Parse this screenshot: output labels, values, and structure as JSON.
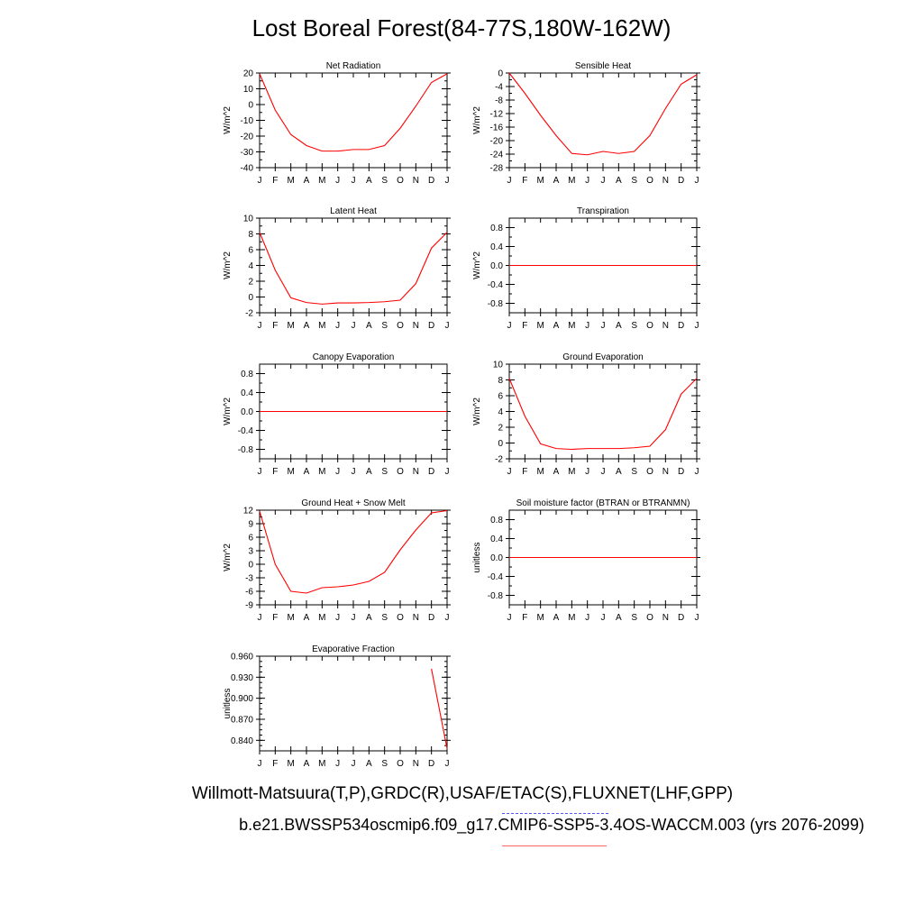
{
  "page": {
    "title": "Lost Boreal Forest(84-77S,180W-162W)",
    "footer_obs": "Willmott-Matsuura(T,P),GRDC(R),USAF/ETAC(S),FLUXNET(LHF,GPP)",
    "footer_case": "b.e21.BWSSP534oscmip6.f09_g17.CMIP6-SSP5-3.4OS-WACCM.003 (yrs 2076-2099)"
  },
  "colors": {
    "series": "#ff0000",
    "obs_legend": "#5555ff",
    "model_legend": "#ff6666"
  },
  "chart_data": [
    {
      "type": "line",
      "title": "Net Radiation",
      "ylabel": "W/m^2",
      "x": [
        "J",
        "F",
        "M",
        "A",
        "M",
        "J",
        "J",
        "A",
        "S",
        "O",
        "N",
        "D",
        "J"
      ],
      "ylim": [
        -40,
        20
      ],
      "yticks": [
        -40,
        -30,
        -20,
        -10,
        0,
        10,
        20
      ],
      "yminor": 5,
      "decimals": 0,
      "values": [
        19.5,
        -3.5,
        -19,
        -26,
        -29.5,
        -29.5,
        -28.5,
        -28.5,
        -26,
        -15,
        -1,
        14,
        19.5
      ]
    },
    {
      "type": "line",
      "title": "Sensible Heat",
      "ylabel": "W/m^2",
      "x": [
        "J",
        "F",
        "M",
        "A",
        "M",
        "J",
        "J",
        "A",
        "S",
        "O",
        "N",
        "D",
        "J"
      ],
      "ylim": [
        -28,
        0
      ],
      "yticks": [
        -28,
        -24,
        -20,
        -16,
        -12,
        -8,
        -4,
        0
      ],
      "yminor": 2,
      "decimals": 0,
      "values": [
        0,
        -6,
        -12.5,
        -18.5,
        -23.8,
        -24.2,
        -23.2,
        -23.8,
        -23.2,
        -18.5,
        -10.5,
        -3.3,
        -0.5
      ]
    },
    {
      "type": "line",
      "title": "Latent Heat",
      "ylabel": "W/m^2",
      "x": [
        "J",
        "F",
        "M",
        "A",
        "M",
        "J",
        "J",
        "A",
        "S",
        "O",
        "N",
        "D",
        "J"
      ],
      "ylim": [
        -2,
        10
      ],
      "yticks": [
        -2,
        0,
        2,
        4,
        6,
        8,
        10
      ],
      "yminor": 1,
      "decimals": 0,
      "values": [
        8.2,
        3.4,
        -0.1,
        -0.7,
        -0.9,
        -0.75,
        -0.75,
        -0.7,
        -0.6,
        -0.4,
        1.7,
        6.2,
        8.2
      ]
    },
    {
      "type": "line",
      "title": "Transpiration",
      "ylabel": "W/m^2",
      "x": [
        "J",
        "F",
        "M",
        "A",
        "M",
        "J",
        "J",
        "A",
        "S",
        "O",
        "N",
        "D",
        "J"
      ],
      "ylim": [
        -1,
        1
      ],
      "yticks": [
        -0.8,
        -0.4,
        0.0,
        0.4,
        0.8
      ],
      "yminor": 0.2,
      "decimals": 1,
      "values": [
        0,
        0,
        0,
        0,
        0,
        0,
        0,
        0,
        0,
        0,
        0,
        0,
        0
      ]
    },
    {
      "type": "line",
      "title": "Canopy Evaporation",
      "ylabel": "W/m^2",
      "x": [
        "J",
        "F",
        "M",
        "A",
        "M",
        "J",
        "J",
        "A",
        "S",
        "O",
        "N",
        "D",
        "J"
      ],
      "ylim": [
        -1,
        1
      ],
      "yticks": [
        -0.8,
        -0.4,
        0.0,
        0.4,
        0.8
      ],
      "yminor": 0.2,
      "decimals": 1,
      "values": [
        0,
        0,
        0,
        0,
        0,
        0,
        0,
        0,
        0,
        0,
        0,
        0,
        0
      ]
    },
    {
      "type": "line",
      "title": "Ground Evaporation",
      "ylabel": "W/m^2",
      "x": [
        "J",
        "F",
        "M",
        "A",
        "M",
        "J",
        "J",
        "A",
        "S",
        "O",
        "N",
        "D",
        "J"
      ],
      "ylim": [
        -2,
        10
      ],
      "yticks": [
        -2,
        0,
        2,
        4,
        6,
        8,
        10
      ],
      "yminor": 1,
      "decimals": 0,
      "values": [
        8.2,
        3.4,
        -0.1,
        -0.7,
        -0.8,
        -0.7,
        -0.7,
        -0.7,
        -0.6,
        -0.4,
        1.7,
        6.2,
        8.2
      ]
    },
    {
      "type": "line",
      "title": "Ground Heat + Snow Melt",
      "ylabel": "W/m^2",
      "x": [
        "J",
        "F",
        "M",
        "A",
        "M",
        "J",
        "J",
        "A",
        "S",
        "O",
        "N",
        "D",
        "J"
      ],
      "ylim": [
        -9,
        12
      ],
      "yticks": [
        -9,
        -6,
        -3,
        0,
        3,
        6,
        9,
        12
      ],
      "yminor": 1.5,
      "decimals": 0,
      "values": [
        11.8,
        0,
        -6,
        -6.4,
        -5.2,
        -5,
        -4.6,
        -3.8,
        -1.8,
        3.2,
        7.6,
        11.4,
        11.9
      ]
    },
    {
      "type": "line",
      "title": "Soil moisture factor (BTRAN or BTRANMN)",
      "ylabel": "unitless",
      "x": [
        "J",
        "F",
        "M",
        "A",
        "M",
        "J",
        "J",
        "A",
        "S",
        "O",
        "N",
        "D",
        "J"
      ],
      "ylim": [
        -1,
        1
      ],
      "yticks": [
        -0.8,
        -0.4,
        0.0,
        0.4,
        0.8
      ],
      "yminor": 0.2,
      "decimals": 1,
      "values": [
        0,
        0,
        0,
        0,
        0,
        0,
        0,
        0,
        0,
        0,
        0,
        0,
        0
      ]
    },
    {
      "type": "line",
      "title": "Evaporative Fraction",
      "ylabel": "unitless",
      "x": [
        "J",
        "F",
        "M",
        "A",
        "M",
        "J",
        "J",
        "A",
        "S",
        "O",
        "N",
        "D",
        "J"
      ],
      "ylim": [
        0.825,
        0.96
      ],
      "yticks": [
        0.84,
        0.87,
        0.9,
        0.93,
        0.96
      ],
      "yminor": 0.0075,
      "decimals": 3,
      "values": [
        null,
        null,
        null,
        null,
        null,
        null,
        null,
        null,
        null,
        null,
        null,
        0.942,
        0.828
      ]
    }
  ]
}
